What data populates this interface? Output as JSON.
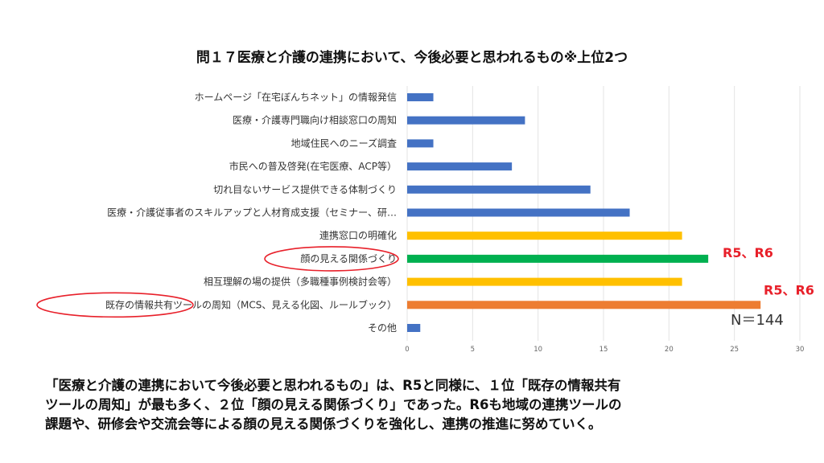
{
  "title": "問１７医療と介護の連携において、今後必要と思われるもの※上位2つ",
  "chart_data": {
    "type": "bar",
    "orientation": "horizontal",
    "categories": [
      "ホームページ「在宅ぼんちネット」の情報発信",
      "医療・介護専門職向け相談窓口の周知",
      "地域住民へのニーズ調査",
      "市民への普及啓発(在宅医療、ACP等）",
      "切れ目ないサービス提供できる体制づくり",
      "医療・介護従事者のスキルアップと人材育成支援（セミナー、研…",
      "連携窓口の明確化",
      "顔の見える関係づくり",
      "相互理解の場の提供（多職種事例検討会等）",
      "既存の情報共有ツールの周知（MCS、見える化図、ルールブック）",
      "その他"
    ],
    "values": [
      2,
      9,
      2,
      8,
      14,
      17,
      21,
      23,
      21,
      27,
      1
    ],
    "bar_colors": [
      "#4472c4",
      "#4472c4",
      "#4472c4",
      "#4472c4",
      "#4472c4",
      "#4472c4",
      "#ffc000",
      "#00b050",
      "#ffc000",
      "#ed7d31",
      "#4472c4"
    ],
    "xlim": [
      0,
      30
    ],
    "xticks": [
      0,
      5,
      10,
      15,
      20,
      25,
      30
    ],
    "grid": true,
    "annotations": [
      {
        "category_index": 7,
        "text": "R5、R6"
      },
      {
        "category_index": 9,
        "text": "R5、R6"
      }
    ],
    "circled_categories": [
      7,
      9
    ],
    "circle_color": "#e8202a",
    "n_label": "N＝144"
  },
  "summary": [
    "「医療と介護の連携において今後必要と思われるもの」は、R5と同様に、１位「既存の情報共有",
    "ツールの周知」が最も多く、２位「顔の見える関係づくり」であった。R6も地域の連携ツールの",
    "課題や、研修会や交流会等による顔の見える関係づくりを強化し、連携の推進に努めていく。"
  ]
}
